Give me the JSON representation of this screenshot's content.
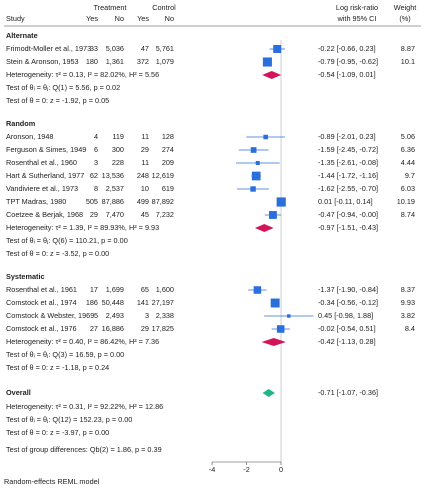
{
  "chart_data": {
    "type": "forest",
    "headers": {
      "study": "Study",
      "treatment": "Treatment",
      "control": "Control",
      "yes": "Yes",
      "no": "No",
      "effect": [
        "Log risk-ratio",
        "with 95% CI"
      ],
      "weight": [
        "Weight",
        "(%)"
      ]
    },
    "xlim": [
      -4.5,
      1.9
    ],
    "xticks": [
      -4,
      -2,
      0
    ],
    "ref_line": 0,
    "square_color": "#2a6fdb",
    "group_diamond_color": "#d4145a",
    "overall_diamond_color": "#1fb589",
    "groups": [
      {
        "name": "Alternate",
        "studies": [
          {
            "study": "Frimodt-Moller et al., 1973",
            "cells": [
              "33",
              "5,036",
              "47",
              "5,761"
            ],
            "est": -0.22,
            "ci_lower": -0.66,
            "ci_upper": 0.23,
            "ci_label": "-0.22 [-0.66, 0.23]",
            "weight": 8.87
          },
          {
            "study": "Stein & Aronson, 1953",
            "cells": [
              "180",
              "1,361",
              "372",
              "1,079"
            ],
            "est": -0.79,
            "ci_lower": -0.95,
            "ci_upper": -0.62,
            "ci_label": "-0.79 [-0.95, -0.62]",
            "weight": 10.1
          }
        ],
        "summary": {
          "label": "Heterogeneity: τ² = 0.13, I² = 82.02%, H² = 5.56",
          "est": -0.54,
          "ci_lower": -1.09,
          "ci_upper": 0.01,
          "ci_label": "-0.54 [-1.09, 0.01]"
        },
        "test_homog": "Test of θᵢ = θⱼ: Q(1) = 5.56, p = 0.02",
        "test_effect": "Test of θ = 0: z = -1.92, p = 0.05"
      },
      {
        "name": "Random",
        "studies": [
          {
            "study": "Aronson, 1948",
            "cells": [
              "4",
              "119",
              "11",
              "128"
            ],
            "est": -0.89,
            "ci_lower": -2.01,
            "ci_upper": 0.23,
            "ci_label": "-0.89 [-2.01, 0.23]",
            "weight": 5.06
          },
          {
            "study": "Ferguson & Simes, 1949",
            "cells": [
              "6",
              "300",
              "29",
              "274"
            ],
            "est": -1.59,
            "ci_lower": -2.45,
            "ci_upper": -0.72,
            "ci_label": "-1.59 [-2.45, -0.72]",
            "weight": 6.36
          },
          {
            "study": "Rosenthal et al., 1960",
            "cells": [
              "3",
              "228",
              "11",
              "209"
            ],
            "est": -1.35,
            "ci_lower": -2.61,
            "ci_upper": -0.08,
            "ci_label": "-1.35 [-2.61, -0.08]",
            "weight": 4.44
          },
          {
            "study": "Hart & Sutherland, 1977",
            "cells": [
              "62",
              "13,536",
              "248",
              "12,619"
            ],
            "est": -1.44,
            "ci_lower": -1.72,
            "ci_upper": -1.16,
            "ci_label": "-1.44 [-1.72, -1.16]",
            "weight": 9.7
          },
          {
            "study": "Vandiviere et al., 1973",
            "cells": [
              "8",
              "2,537",
              "10",
              "619"
            ],
            "est": -1.62,
            "ci_lower": -2.55,
            "ci_upper": -0.7,
            "ci_label": "-1.62 [-2.55, -0.70]",
            "weight": 6.03
          },
          {
            "study": "TPT Madras, 1980",
            "cells": [
              "505",
              "87,886",
              "499",
              "87,892"
            ],
            "est": 0.01,
            "ci_lower": -0.11,
            "ci_upper": 0.14,
            "ci_label": "0.01 [-0.11, 0.14]",
            "weight": 10.19
          },
          {
            "study": "Coetzee & Berjak, 1968",
            "cells": [
              "29",
              "7,470",
              "45",
              "7,232"
            ],
            "est": -0.47,
            "ci_lower": -0.94,
            "ci_upper": -0.0,
            "ci_label": "-0.47 [-0.94, -0.00]",
            "weight": 8.74
          }
        ],
        "summary": {
          "label": "Heterogeneity: τ² = 1.39, I² = 89.93%, H² = 9.93",
          "est": -0.97,
          "ci_lower": -1.51,
          "ci_upper": -0.43,
          "ci_label": "-0.97 [-1.51, -0.43]"
        },
        "test_homog": "Test of θᵢ = θⱼ: Q(6) = 110.21, p = 0.00",
        "test_effect": "Test of θ = 0: z = -3.52, p = 0.00"
      },
      {
        "name": "Systematic",
        "studies": [
          {
            "study": "Rosenthal et al., 1961",
            "cells": [
              "17",
              "1,699",
              "65",
              "1,600"
            ],
            "est": -1.37,
            "ci_lower": -1.9,
            "ci_upper": -0.84,
            "ci_label": "-1.37 [-1.90, -0.84]",
            "weight": 8.37
          },
          {
            "study": "Comstock et al., 1974",
            "cells": [
              "186",
              "50,448",
              "141",
              "27,197"
            ],
            "est": -0.34,
            "ci_lower": -0.56,
            "ci_upper": -0.12,
            "ci_label": "-0.34 [-0.56, -0.12]",
            "weight": 9.93
          },
          {
            "study": "Comstock & Webster, 1969",
            "cells": [
              "5",
              "2,493",
              "3",
              "2,338"
            ],
            "est": 0.45,
            "ci_lower": -0.98,
            "ci_upper": 1.88,
            "ci_label": "0.45 [-0.98, 1.88]",
            "weight": 3.82
          },
          {
            "study": "Comstock et al., 1976",
            "cells": [
              "27",
              "16,886",
              "29",
              "17,825"
            ],
            "est": -0.02,
            "ci_lower": -0.54,
            "ci_upper": 0.51,
            "ci_label": "-0.02 [-0.54, 0.51]",
            "weight": 8.4
          }
        ],
        "summary": {
          "label": "Heterogeneity: τ² = 0.40, I² = 86.42%, H² = 7.36",
          "est": -0.42,
          "ci_lower": -1.13,
          "ci_upper": 0.28,
          "ci_label": "-0.42 [-1.13, 0.28]"
        },
        "test_homog": "Test of θᵢ = θⱼ: Q(3) = 16.59, p = 0.00",
        "test_effect": "Test of θ = 0: z = -1.18, p = 0.24"
      }
    ],
    "overall": {
      "label": "Overall",
      "est": -0.71,
      "ci_lower": -1.07,
      "ci_upper": -0.36,
      "ci_label": "-0.71 [-1.07, -0.36]",
      "heterogeneity": "Heterogeneity: τ² = 0.31, I² = 92.22%, H² = 12.86",
      "test_homog": "Test of θᵢ = θⱼ: Q(12) = 152.23, p = 0.00",
      "test_effect": "Test of θ = 0: z = -3.97, p = 0.00"
    },
    "group_test": "Test of group differences: Qb(2) = 1.86, p = 0.39",
    "footnote": "Random-effects REML model"
  }
}
